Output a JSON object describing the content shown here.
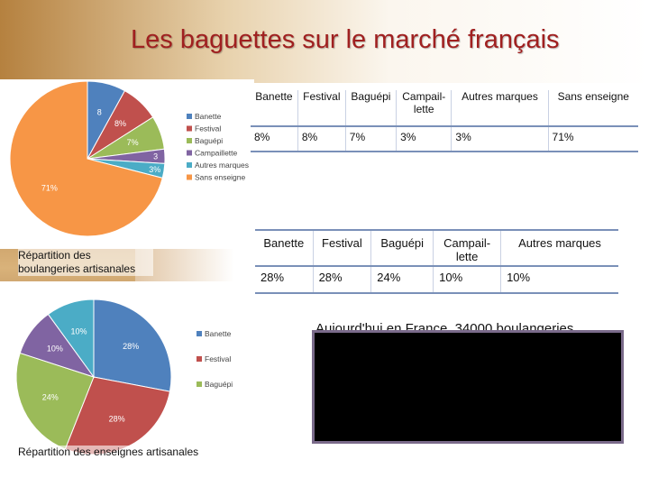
{
  "slide": {
    "title": "Les baguettes sur le marché français",
    "caption_1": "Répartition des boulangeries artisanales",
    "caption_2": "Répartition des enseignes artisanales",
    "black_box_overlay_text": "Aujourd'hui en France, 34000 boulangeries"
  },
  "colors": {
    "title": "#a02020",
    "banette": "#4f81bd",
    "festival": "#c0504d",
    "baguepi": "#9bbb59",
    "campaillette": "#8064a2",
    "autres_marques": "#4bacc6",
    "sans_enseigne": "#f79646"
  },
  "table_1": {
    "headers": [
      "Banette",
      "Festival",
      "Baguépi",
      "Campail-\nlette",
      "Autres marques",
      "Sans enseigne"
    ],
    "values": [
      "8%",
      "8%",
      "7%",
      "3%",
      "3%",
      "71%"
    ]
  },
  "table_2": {
    "headers": [
      "Banette",
      "Festival",
      "Baguépi",
      "Campail-\nlette",
      "Autres marques"
    ],
    "values": [
      "28%",
      "28%",
      "24%",
      "10%",
      "10%"
    ]
  },
  "chart_data": [
    {
      "type": "pie",
      "title": "",
      "categories": [
        "Banette",
        "Festival",
        "Baguépi",
        "Campaillette",
        "Autres marques",
        "Sans enseigne"
      ],
      "values": [
        8,
        8,
        7,
        3,
        3,
        71
      ],
      "data_labels": [
        "8",
        "8%",
        "7%",
        "3",
        "3%",
        "71%"
      ],
      "legend": [
        "Banette",
        "Festival",
        "Baguépi",
        "Campaillette",
        "Autres marques",
        "Sans enseigne"
      ],
      "legend_position": "right"
    },
    {
      "type": "pie",
      "title": "",
      "categories": [
        "Banette",
        "Festival",
        "Baguépi",
        "Campaillette",
        "Autres marques"
      ],
      "values": [
        28,
        28,
        24,
        10,
        10
      ],
      "data_labels": [
        "28%",
        "28%",
        "24%",
        "10%",
        "10%"
      ],
      "legend": [
        "Banette",
        "Festival",
        "Baguépi"
      ],
      "legend_position": "right"
    }
  ]
}
